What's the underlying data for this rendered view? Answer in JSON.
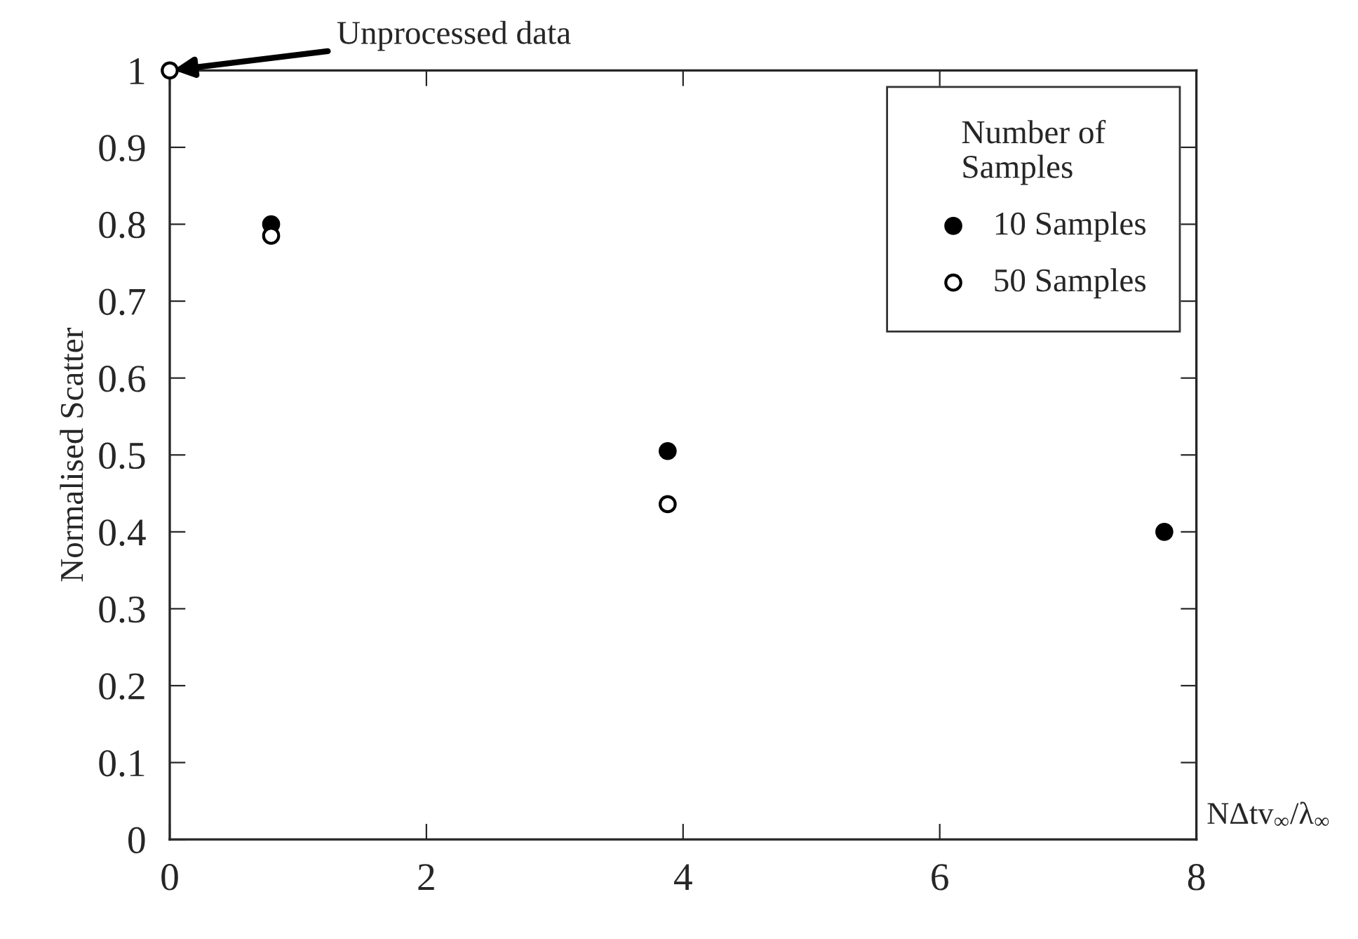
{
  "chart_data": {
    "type": "scatter",
    "xlabel": "NΔtv$_{∞}$/λ$_{∞}$",
    "ylabel": "Normalised Scatter",
    "legend_title": "Number of\nSamples",
    "series": [
      {
        "name": "10 Samples",
        "color": "#000000",
        "x": [
          0.79,
          3.88,
          7.75
        ],
        "values": [
          0.8,
          0.505,
          0.4
        ]
      },
      {
        "name": "50 Samples",
        "color": "#ffffff",
        "x": [
          0,
          0.79,
          3.88
        ],
        "values": [
          1,
          0.785,
          0.436
        ]
      }
    ],
    "xlim": [
      0,
      8
    ],
    "xticks": [
      0,
      2,
      4,
      6,
      8
    ],
    "ylim": [
      0,
      1
    ],
    "yticks": [
      0,
      0.1,
      0.2,
      0.3,
      0.4,
      0.5,
      0.6,
      0.7,
      0.8,
      0.9,
      1
    ],
    "annotations": [
      {
        "text": "Unprocessed data",
        "x": 0,
        "y": 1
      }
    ],
    "legend": "top right",
    "marker": "circle",
    "grid": false
  }
}
